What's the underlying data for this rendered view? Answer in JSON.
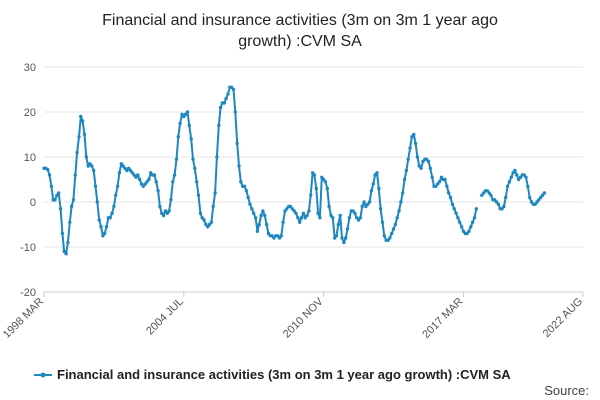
{
  "chart_data": {
    "type": "line",
    "title_lines": [
      "Financial and insurance activities (3m on 3m 1 year ago",
      "growth) :CVM SA"
    ],
    "xlabel": "",
    "ylabel": "",
    "ylim": [
      -20,
      30
    ],
    "yticks": [
      -20,
      -10,
      0,
      10,
      20,
      30
    ],
    "x_start": "1998 MAR",
    "x_end": "2022 AUG",
    "xticks": [
      "1998 MAR",
      "2004 JUL",
      "2010 NOV",
      "2017 MAR",
      "2022 AUG"
    ],
    "grid": true,
    "legend_position": "bottom",
    "series": [
      {
        "name": "Financial and insurance activities (3m on 3m 1 year ago growth) :CVM SA",
        "color": "#1f87c0",
        "points": [
          [
            "1998 MAR",
            7.5
          ],
          [
            "1998 APR",
            7.5
          ],
          [
            "1998 MAY",
            7.2
          ],
          [
            "1998 JUN",
            6.0
          ],
          [
            "1998 JUL",
            3.5
          ],
          [
            "1998 AUG",
            0.5
          ],
          [
            "1998 SEP",
            0.5
          ],
          [
            "1998 OCT",
            1.5
          ],
          [
            "1998 NOV",
            2.0
          ],
          [
            "1998 DEC",
            -1.5
          ],
          [
            "1999 JAN",
            -7.0
          ],
          [
            "1999 FEB",
            -11.0
          ],
          [
            "1999 MAR",
            -11.5
          ],
          [
            "1999 APR",
            -9.0
          ],
          [
            "1999 MAY",
            -4.5
          ],
          [
            "1999 JUN",
            -1.0
          ],
          [
            "1999 JUL",
            0.5
          ],
          [
            "1999 AUG",
            6.0
          ],
          [
            "1999 SEP",
            11.0
          ],
          [
            "1999 OCT",
            14.5
          ],
          [
            "1999 NOV",
            19.0
          ],
          [
            "1999 DEC",
            18.0
          ],
          [
            "2000 JAN",
            15.0
          ],
          [
            "2000 FEB",
            10.0
          ],
          [
            "2000 MAR",
            8.0
          ],
          [
            "2000 APR",
            8.5
          ],
          [
            "2000 MAY",
            8.0
          ],
          [
            "2000 JUN",
            7.0
          ],
          [
            "2000 JUL",
            3.5
          ],
          [
            "2000 AUG",
            0.0
          ],
          [
            "2000 SEP",
            -4.0
          ],
          [
            "2000 OCT",
            -5.5
          ],
          [
            "2000 NOV",
            -7.5
          ],
          [
            "2000 DEC",
            -7.0
          ],
          [
            "2001 JAN",
            -5.5
          ],
          [
            "2001 FEB",
            -3.5
          ],
          [
            "2001 MAR",
            -3.5
          ],
          [
            "2001 APR",
            -2.5
          ],
          [
            "2001 MAY",
            -1.0
          ],
          [
            "2001 JUN",
            1.5
          ],
          [
            "2001 JUL",
            3.5
          ],
          [
            "2001 AUG",
            6.5
          ],
          [
            "2001 SEP",
            8.5
          ],
          [
            "2001 OCT",
            8.0
          ],
          [
            "2001 NOV",
            7.5
          ],
          [
            "2001 DEC",
            7.0
          ],
          [
            "2002 JAN",
            7.5
          ],
          [
            "2002 FEB",
            7.0
          ],
          [
            "2002 MAR",
            6.5
          ],
          [
            "2002 APR",
            6.0
          ],
          [
            "2002 MAY",
            5.5
          ],
          [
            "2002 JUN",
            6.0
          ],
          [
            "2002 JUL",
            5.0
          ],
          [
            "2002 AUG",
            4.0
          ],
          [
            "2002 SEP",
            3.5
          ],
          [
            "2002 OCT",
            4.0
          ],
          [
            "2002 NOV",
            4.5
          ],
          [
            "2002 DEC",
            5.0
          ],
          [
            "2003 JAN",
            6.5
          ],
          [
            "2003 FEB",
            6.0
          ],
          [
            "2003 MAR",
            6.0
          ],
          [
            "2003 APR",
            4.5
          ],
          [
            "2003 MAY",
            2.5
          ],
          [
            "2003 JUN",
            -1.0
          ],
          [
            "2003 JUL",
            -2.5
          ],
          [
            "2003 AUG",
            -3.0
          ],
          [
            "2003 SEP",
            -2.0
          ],
          [
            "2003 OCT",
            -2.5
          ],
          [
            "2003 NOV",
            -2.0
          ],
          [
            "2003 DEC",
            0.5
          ],
          [
            "2004 JAN",
            4.5
          ],
          [
            "2004 FEB",
            6.0
          ],
          [
            "2004 MAR",
            9.5
          ],
          [
            "2004 APR",
            14.5
          ],
          [
            "2004 MAY",
            17.5
          ],
          [
            "2004 JUN",
            19.5
          ],
          [
            "2004 JUL",
            19.0
          ],
          [
            "2004 AUG",
            19.5
          ],
          [
            "2004 SEP",
            20.0
          ],
          [
            "2004 OCT",
            17.0
          ],
          [
            "2004 NOV",
            14.0
          ],
          [
            "2004 DEC",
            9.5
          ],
          [
            "2005 JAN",
            7.5
          ],
          [
            "2005 FEB",
            4.5
          ],
          [
            "2005 MAR",
            1.5
          ],
          [
            "2005 APR",
            -2.5
          ],
          [
            "2005 MAY",
            -3.5
          ],
          [
            "2005 JUN",
            -4.0
          ],
          [
            "2005 JUL",
            -5.0
          ],
          [
            "2005 AUG",
            -5.5
          ],
          [
            "2005 SEP",
            -5.0
          ],
          [
            "2005 OCT",
            -4.5
          ],
          [
            "2005 NOV",
            -1.0
          ],
          [
            "2005 DEC",
            2.0
          ],
          [
            "2006 JAN",
            10.0
          ],
          [
            "2006 FEB",
            17.0
          ],
          [
            "2006 MAR",
            21.0
          ],
          [
            "2006 APR",
            22.0
          ],
          [
            "2006 MAY",
            22.0
          ],
          [
            "2006 JUN",
            23.0
          ],
          [
            "2006 JUL",
            24.0
          ],
          [
            "2006 AUG",
            25.5
          ],
          [
            "2006 SEP",
            25.5
          ],
          [
            "2006 OCT",
            25.0
          ],
          [
            "2006 NOV",
            20.0
          ],
          [
            "2006 DEC",
            13.0
          ],
          [
            "2007 JAN",
            8.0
          ],
          [
            "2007 FEB",
            4.5
          ],
          [
            "2007 MAR",
            3.5
          ],
          [
            "2007 APR",
            3.5
          ],
          [
            "2007 MAY",
            2.5
          ],
          [
            "2007 JUN",
            1.0
          ],
          [
            "2007 JUL",
            -0.5
          ],
          [
            "2007 AUG",
            -1.5
          ],
          [
            "2007 SEP",
            -2.5
          ],
          [
            "2007 OCT",
            -3.5
          ],
          [
            "2007 NOV",
            -6.5
          ],
          [
            "2007 DEC",
            -5.0
          ],
          [
            "2008 JAN",
            -3.0
          ],
          [
            "2008 FEB",
            -2.0
          ],
          [
            "2008 MAR",
            -3.0
          ],
          [
            "2008 APR",
            -5.0
          ],
          [
            "2008 MAY",
            -7.0
          ],
          [
            "2008 JUN",
            -7.5
          ],
          [
            "2008 JUL",
            -7.5
          ],
          [
            "2008 AUG",
            -8.0
          ],
          [
            "2008 SEP",
            -7.5
          ],
          [
            "2008 OCT",
            -7.5
          ],
          [
            "2008 NOV",
            -8.0
          ],
          [
            "2008 DEC",
            -7.5
          ],
          [
            "2009 JAN",
            -4.5
          ],
          [
            "2009 FEB",
            -2.0
          ],
          [
            "2009 MAR",
            -1.5
          ],
          [
            "2009 APR",
            -1.0
          ],
          [
            "2009 MAY",
            -1.0
          ],
          [
            "2009 JUN",
            -1.5
          ],
          [
            "2009 JUL",
            -2.0
          ],
          [
            "2009 AUG",
            -2.5
          ],
          [
            "2009 SEP",
            -3.5
          ],
          [
            "2009 OCT",
            -4.5
          ],
          [
            "2009 NOV",
            -3.5
          ],
          [
            "2009 DEC",
            -2.5
          ],
          [
            "2010 JAN",
            -3.5
          ],
          [
            "2010 FEB",
            -3.0
          ],
          [
            "2010 MAR",
            -2.0
          ],
          [
            "2010 APR",
            1.5
          ],
          [
            "2010 MAY",
            6.5
          ],
          [
            "2010 JUN",
            6.0
          ],
          [
            "2010 JUL",
            3.0
          ],
          [
            "2010 AUG",
            -2.5
          ],
          [
            "2010 SEP",
            -3.5
          ],
          [
            "2010 OCT",
            5.5
          ],
          [
            "2010 NOV",
            5.0
          ],
          [
            "2010 DEC",
            4.5
          ],
          [
            "2011 JAN",
            3.0
          ],
          [
            "2011 FEB",
            -1.0
          ],
          [
            "2011 MAR",
            -3.0
          ],
          [
            "2011 APR",
            -3.5
          ],
          [
            "2011 MAY",
            -8.0
          ],
          [
            "2011 JUN",
            -7.5
          ],
          [
            "2011 JUL",
            -5.0
          ],
          [
            "2011 AUG",
            -3.0
          ],
          [
            "2011 SEP",
            -8.0
          ],
          [
            "2011 OCT",
            -9.0
          ],
          [
            "2011 NOV",
            -8.0
          ],
          [
            "2011 DEC",
            -6.0
          ],
          [
            "2012 JAN",
            -3.5
          ],
          [
            "2012 FEB",
            -2.0
          ],
          [
            "2012 MAR",
            -2.0
          ],
          [
            "2012 APR",
            -2.5
          ],
          [
            "2012 MAY",
            -3.5
          ],
          [
            "2012 JUN",
            -4.0
          ],
          [
            "2012 JUL",
            -3.5
          ],
          [
            "2012 AUG",
            -1.0
          ],
          [
            "2012 SEP",
            0.0
          ],
          [
            "2012 OCT",
            -1.0
          ],
          [
            "2012 NOV",
            -0.5
          ],
          [
            "2012 DEC",
            0.0
          ],
          [
            "2013 JAN",
            2.5
          ],
          [
            "2013 FEB",
            4.0
          ],
          [
            "2013 MAR",
            6.0
          ],
          [
            "2013 APR",
            6.5
          ],
          [
            "2013 MAY",
            3.0
          ],
          [
            "2013 JUN",
            -1.5
          ],
          [
            "2013 JUL",
            -4.5
          ],
          [
            "2013 AUG",
            -7.5
          ],
          [
            "2013 SEP",
            -8.5
          ],
          [
            "2013 OCT",
            -8.5
          ],
          [
            "2013 NOV",
            -8.0
          ],
          [
            "2013 DEC",
            -7.0
          ],
          [
            "2014 JAN",
            -6.0
          ],
          [
            "2014 FEB",
            -5.0
          ],
          [
            "2014 MAR",
            -3.5
          ],
          [
            "2014 APR",
            -2.0
          ],
          [
            "2014 MAY",
            0.0
          ],
          [
            "2014 JUN",
            2.0
          ],
          [
            "2014 JUL",
            5.0
          ],
          [
            "2014 AUG",
            7.0
          ],
          [
            "2014 SEP",
            9.5
          ],
          [
            "2014 OCT",
            12.0
          ],
          [
            "2014 NOV",
            14.5
          ],
          [
            "2014 DEC",
            15.0
          ],
          [
            "2015 JAN",
            13.0
          ],
          [
            "2015 FEB",
            10.0
          ],
          [
            "2015 MAR",
            8.0
          ],
          [
            "2015 APR",
            7.5
          ],
          [
            "2015 MAY",
            9.0
          ],
          [
            "2015 JUN",
            9.5
          ],
          [
            "2015 JUL",
            9.5
          ],
          [
            "2015 AUG",
            9.0
          ],
          [
            "2015 SEP",
            7.5
          ],
          [
            "2015 OCT",
            5.5
          ],
          [
            "2015 NOV",
            3.5
          ],
          [
            "2015 DEC",
            3.5
          ],
          [
            "2016 JAN",
            4.0
          ],
          [
            "2016 FEB",
            4.5
          ],
          [
            "2016 MAR",
            5.5
          ],
          [
            "2016 APR",
            5.0
          ],
          [
            "2016 MAY",
            5.0
          ],
          [
            "2016 JUN",
            3.5
          ],
          [
            "2016 JUL",
            2.0
          ],
          [
            "2016 AUG",
            1.0
          ],
          [
            "2016 SEP",
            -0.5
          ],
          [
            "2016 OCT",
            -1.5
          ],
          [
            "2016 NOV",
            -2.5
          ],
          [
            "2016 DEC",
            -3.5
          ],
          [
            "2017 JAN",
            -4.5
          ],
          [
            "2017 FEB",
            -5.5
          ],
          [
            "2017 MAR",
            -6.5
          ],
          [
            "2017 APR",
            -7.0
          ],
          [
            "2017 MAY",
            -7.0
          ],
          [
            "2017 JUN",
            -6.5
          ],
          [
            "2017 JUL",
            -5.5
          ],
          [
            "2017 AUG",
            -4.5
          ],
          [
            "2017 SEP",
            -3.5
          ],
          [
            "2017 OCT",
            -1.5
          ],
          [
            "2017 NOV",
            null
          ],
          [
            "2017 DEC",
            null
          ],
          [
            "2018 JAN",
            1.5
          ],
          [
            "2018 FEB",
            2.0
          ],
          [
            "2018 MAR",
            2.5
          ],
          [
            "2018 APR",
            2.5
          ],
          [
            "2018 MAY",
            2.0
          ],
          [
            "2018 JUN",
            1.5
          ],
          [
            "2018 JUL",
            0.5
          ],
          [
            "2018 AUG",
            0.5
          ],
          [
            "2018 SEP",
            0.0
          ],
          [
            "2018 OCT",
            -0.5
          ],
          [
            "2018 NOV",
            -1.5
          ],
          [
            "2018 DEC",
            -1.5
          ],
          [
            "2019 JAN",
            -1.0
          ],
          [
            "2019 FEB",
            1.0
          ],
          [
            "2019 MAR",
            3.5
          ],
          [
            "2019 APR",
            4.5
          ],
          [
            "2019 MAY",
            5.5
          ],
          [
            "2019 JUN",
            6.5
          ],
          [
            "2019 JUL",
            7.0
          ],
          [
            "2019 AUG",
            6.0
          ],
          [
            "2019 SEP",
            5.0
          ],
          [
            "2019 OCT",
            5.5
          ],
          [
            "2019 NOV",
            6.0
          ],
          [
            "2019 DEC",
            6.0
          ],
          [
            "2020 JAN",
            5.5
          ],
          [
            "2020 FEB",
            3.5
          ],
          [
            "2020 MAR",
            1.0
          ],
          [
            "2020 APR",
            0.0
          ],
          [
            "2020 MAY",
            -0.5
          ],
          [
            "2020 JUN",
            -0.5
          ],
          [
            "2020 JUL",
            0.0
          ],
          [
            "2020 AUG",
            0.5
          ],
          [
            "2020 SEP",
            1.0
          ],
          [
            "2020 OCT",
            1.5
          ],
          [
            "2020 NOV",
            2.0
          ]
        ]
      }
    ]
  },
  "source_label": "Source:"
}
